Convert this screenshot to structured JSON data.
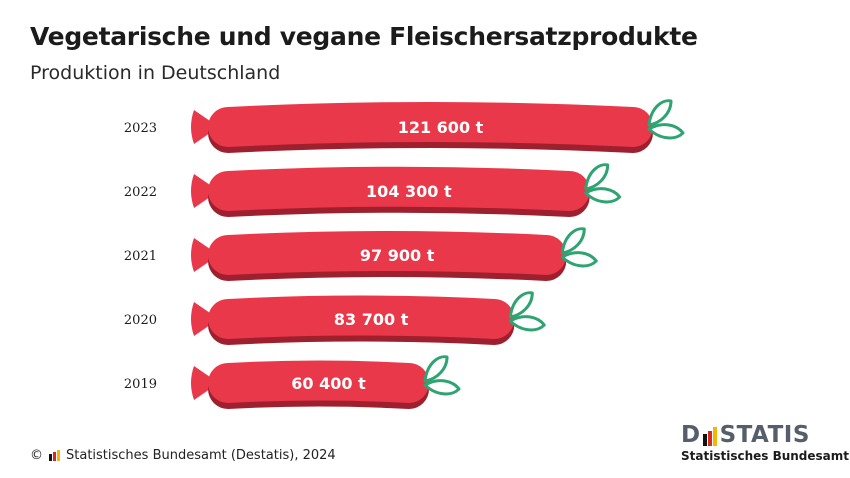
{
  "header": {
    "title": "Vegetarische und vegane Fleischersatzprodukte",
    "subtitle": "Produktion in Deutschland"
  },
  "chart_data": {
    "type": "bar",
    "orientation": "horizontal",
    "categories": [
      "2023",
      "2022",
      "2021",
      "2020",
      "2019"
    ],
    "values": [
      121600,
      104300,
      97900,
      83700,
      60400
    ],
    "value_labels": [
      "121 600 t",
      "104 300 t",
      "97 900 t",
      "83 700 t",
      "60 400 t"
    ],
    "unit": "t",
    "title": "Vegetarische und vegane Fleischersatzprodukte",
    "subtitle": "Produktion in Deutschland",
    "xlabel": "",
    "ylabel": "",
    "xlim": [
      0,
      121600
    ],
    "grid": false,
    "legend": "none",
    "colors": {
      "sausage": "#e8384a",
      "sausage_shadow": "#9e1f2e",
      "leaf": "#2fa371"
    }
  },
  "footer": {
    "copyright": "© ",
    "source": "Statistisches Bundesamt (Destatis), 2024"
  },
  "logo": {
    "word_left": "D",
    "word_right": "STATIS",
    "subtitle": "Statistisches Bundesamt"
  },
  "flag_colors": [
    "#111111",
    "#d52b1e",
    "#f2b705"
  ]
}
